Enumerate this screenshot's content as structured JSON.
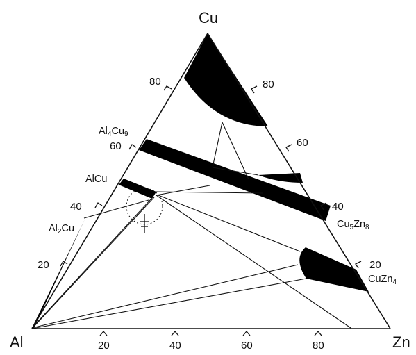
{
  "corners": {
    "top": "Cu",
    "left": "Al",
    "right": "Zn"
  },
  "ticks": {
    "left": [
      "80",
      "60",
      "40",
      "20"
    ],
    "right": [
      "80",
      "60",
      "40",
      "20"
    ],
    "bottom": [
      "20",
      "40",
      "60",
      "80"
    ]
  },
  "phases": {
    "al4cu9": {
      "base": "Al",
      "sub1": "4",
      "mid": "Cu",
      "sub2": "9"
    },
    "alcu": {
      "base": "AlCu"
    },
    "al2cu": {
      "base": "Al",
      "sub1": "2",
      "mid": "Cu"
    },
    "cu5zn8": {
      "base": "Cu",
      "sub1": "5",
      "mid": "Zn",
      "sub2": "8"
    },
    "cuzn4": {
      "base": "CuZn",
      "sub1": "4"
    }
  },
  "colors": {
    "ink": "#111111",
    "region": "#000000",
    "background": "#ffffff"
  }
}
